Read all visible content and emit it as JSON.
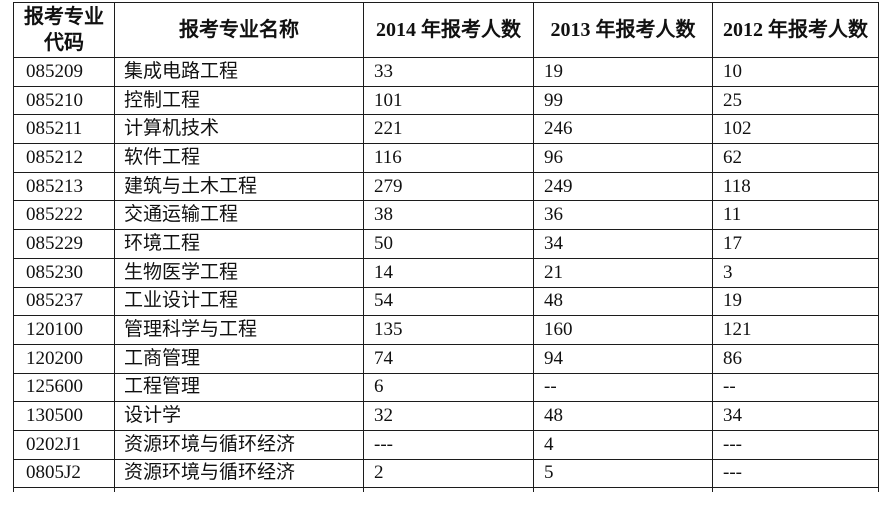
{
  "colors": {
    "background": "#ffffff",
    "border": "#1c1c1c",
    "text": "#111111"
  },
  "table": {
    "header": {
      "code_line1": "报考专业",
      "code_line2": "代码",
      "name": "报考专业名称",
      "y2014": "2014 年报考人数",
      "y2013": "2013 年报考人数",
      "y2012": "2012 年报考人数"
    },
    "rows": [
      {
        "code": "085209",
        "name": "集成电路工程",
        "y2014": "33",
        "y2013": "19",
        "y2012": "10"
      },
      {
        "code": "085210",
        "name": "控制工程",
        "y2014": "101",
        "y2013": "99",
        "y2012": "25"
      },
      {
        "code": "085211",
        "name": "计算机技术",
        "y2014": "221",
        "y2013": "246",
        "y2012": "102"
      },
      {
        "code": "085212",
        "name": "软件工程",
        "y2014": "116",
        "y2013": "96",
        "y2012": "62"
      },
      {
        "code": "085213",
        "name": "建筑与土木工程",
        "y2014": "279",
        "y2013": "249",
        "y2012": "118"
      },
      {
        "code": "085222",
        "name": "交通运输工程",
        "y2014": "38",
        "y2013": "36",
        "y2012": "11"
      },
      {
        "code": "085229",
        "name": "环境工程",
        "y2014": "50",
        "y2013": "34",
        "y2012": "17"
      },
      {
        "code": "085230",
        "name": "生物医学工程",
        "y2014": "14",
        "y2013": "21",
        "y2012": "3"
      },
      {
        "code": "085237",
        "name": "工业设计工程",
        "y2014": "54",
        "y2013": "48",
        "y2012": "19"
      },
      {
        "code": "120100",
        "name": "管理科学与工程",
        "y2014": "135",
        "y2013": "160",
        "y2012": "121"
      },
      {
        "code": "120200",
        "name": "工商管理",
        "y2014": "74",
        "y2013": "94",
        "y2012": "86"
      },
      {
        "code": "125600",
        "name": "工程管理",
        "y2014": "6",
        "y2013": "--",
        "y2012": "--"
      },
      {
        "code": "130500",
        "name": "设计学",
        "y2014": "32",
        "y2013": "48",
        "y2012": "34"
      },
      {
        "code": "0202J1",
        "name": "资源环境与循环经济",
        "y2014": "---",
        "y2013": "4",
        "y2012": "---"
      },
      {
        "code": "0805J2",
        "name": "资源环境与循环经济",
        "y2014": "2",
        "y2013": "5",
        "y2012": "---"
      }
    ]
  }
}
